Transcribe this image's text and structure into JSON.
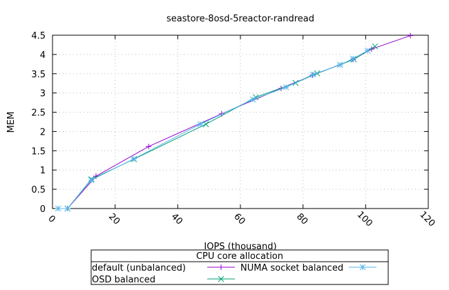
{
  "chart_data": {
    "type": "line",
    "title": "seastore-8osd-5reactor-randread",
    "xlabel": "IOPS (thousand)",
    "ylabel": "MEM",
    "xlim": [
      0,
      120
    ],
    "ylim": [
      0,
      4.5
    ],
    "xticks": [
      0,
      20,
      40,
      60,
      80,
      100,
      120
    ],
    "yticks": [
      "0",
      "0.5",
      "1",
      "1.5",
      "2",
      "2.5",
      "3",
      "3.5",
      "4",
      "4.5"
    ],
    "grid": true,
    "legend_title": "CPU core allocation",
    "legend_position": "bottom",
    "series": [
      {
        "name": "default (unbalanced)",
        "color": "#9400d3",
        "marker": "plus",
        "x": [
          4.8,
          13.9,
          30.7,
          54,
          73,
          83,
          96,
          101.9,
          114.3
        ],
        "y": [
          0,
          0.84,
          1.61,
          2.46,
          3.12,
          3.46,
          3.87,
          4.14,
          4.49
        ]
      },
      {
        "name": "NUMA socket balanced",
        "color": "#56b4e9",
        "marker": "star",
        "x": [
          1.8,
          4.8,
          12.4,
          26,
          47.2,
          64,
          74.6,
          83.2,
          91.8,
          96,
          100.6
        ],
        "y": [
          0,
          0,
          0.74,
          1.29,
          2.19,
          2.83,
          3.15,
          3.48,
          3.73,
          3.89,
          4.1
        ]
      },
      {
        "name": "OSD balanced",
        "color": "#009e73",
        "marker": "x",
        "x": [
          4.8,
          12.4,
          26,
          49,
          64.9,
          77.6,
          84.5,
          91.8,
          96.2,
          103
        ],
        "y": [
          0,
          0.76,
          1.28,
          2.19,
          2.89,
          3.26,
          3.51,
          3.73,
          3.87,
          4.21
        ]
      }
    ]
  }
}
